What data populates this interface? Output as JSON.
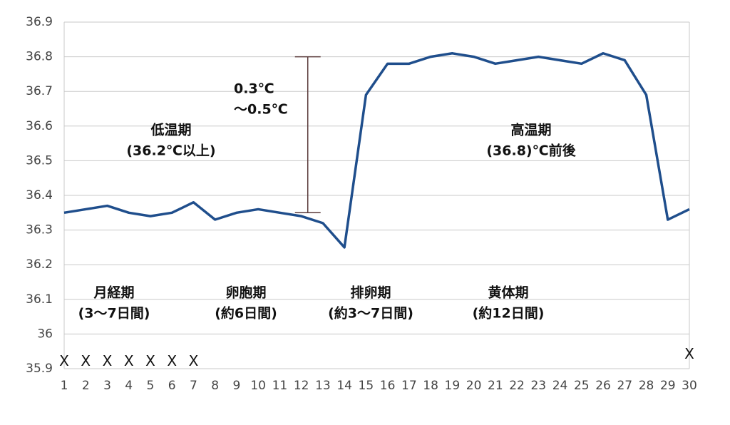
{
  "chart_data": {
    "type": "line",
    "x": [
      1,
      2,
      3,
      4,
      5,
      6,
      7,
      8,
      9,
      10,
      11,
      12,
      13,
      14,
      15,
      16,
      17,
      18,
      19,
      20,
      21,
      22,
      23,
      24,
      25,
      26,
      27,
      28,
      29,
      30
    ],
    "series": [
      {
        "color": "#1f4e8c",
        "values": [
          36.35,
          36.36,
          36.37,
          36.35,
          36.34,
          36.35,
          36.38,
          36.33,
          36.35,
          36.36,
          36.35,
          36.34,
          36.32,
          36.25,
          36.69,
          36.78,
          36.78,
          36.8,
          36.81,
          36.8,
          36.78,
          36.79,
          36.8,
          36.79,
          36.78,
          36.81,
          36.79,
          36.69,
          36.33,
          36.36
        ]
      }
    ],
    "markers": {
      "symbol": "X",
      "values": [
        35.92,
        35.92,
        35.92,
        35.92,
        35.92,
        35.92,
        35.92,
        null,
        null,
        null,
        null,
        null,
        null,
        null,
        null,
        null,
        null,
        null,
        null,
        null,
        null,
        null,
        null,
        null,
        null,
        null,
        null,
        null,
        null,
        35.94
      ]
    },
    "xlim": [
      1,
      30
    ],
    "xticks": [
      1,
      2,
      3,
      4,
      5,
      6,
      7,
      8,
      9,
      10,
      11,
      12,
      13,
      14,
      15,
      16,
      17,
      18,
      19,
      20,
      21,
      22,
      23,
      24,
      25,
      26,
      27,
      28,
      29,
      30
    ],
    "ylim": [
      35.9,
      36.9
    ],
    "yticks": [
      35.9,
      36,
      36.1,
      36.2,
      36.3,
      36.4,
      36.5,
      36.6,
      36.7,
      36.8,
      36.9
    ],
    "grid": true,
    "range_bar": {
      "x": 12.3,
      "from": 36.35,
      "to": 36.8
    },
    "annotations": [
      [
        "0.3℃",
        "～0.5℃"
      ],
      [
        "低温期",
        "(36.2℃以上)"
      ],
      [
        "高温期",
        "(36.8)℃前後"
      ],
      [
        "月経期",
        "(3～7日間)"
      ],
      [
        "卵胞期",
        "(約6日間)"
      ],
      [
        "排卵期",
        "(約3～7日間)"
      ],
      [
        "黄体期",
        "(約12日間)"
      ]
    ]
  }
}
